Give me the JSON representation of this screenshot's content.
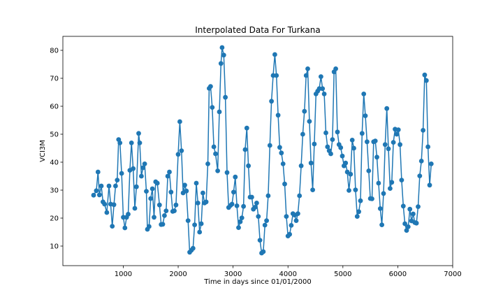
{
  "chart_data": {
    "type": "line",
    "title": "Interpolated Data For Turkana",
    "xlabel": "Time in days since 01/01/2000",
    "ylabel": "VCI3M",
    "xlim": [
      -100,
      7000
    ],
    "ylim": [
      3,
      85
    ],
    "xticks": [
      1000,
      2000,
      3000,
      4000,
      5000,
      6000,
      7000
    ],
    "yticks": [
      10,
      20,
      30,
      40,
      50,
      60,
      70,
      80
    ],
    "grid": false,
    "legend": "none",
    "series": [
      {
        "color": "#1f77b4",
        "marker": "circle",
        "points": [
          [
            460,
            28.2
          ],
          [
            510,
            29.8
          ],
          [
            540,
            36.5
          ],
          [
            565,
            28.3
          ],
          [
            600,
            31.5
          ],
          [
            630,
            25.8
          ],
          [
            660,
            25.0
          ],
          [
            700,
            22.0
          ],
          [
            740,
            31.5
          ],
          [
            770,
            25.0
          ],
          [
            800,
            17.1
          ],
          [
            830,
            24.8
          ],
          [
            860,
            31.5
          ],
          [
            890,
            33.6
          ],
          [
            915,
            48.1
          ],
          [
            940,
            46.9
          ],
          [
            970,
            36.0
          ],
          [
            1000,
            20.3
          ],
          [
            1030,
            16.5
          ],
          [
            1060,
            20.3
          ],
          [
            1090,
            21.4
          ],
          [
            1120,
            37.1
          ],
          [
            1150,
            46.9
          ],
          [
            1180,
            37.7
          ],
          [
            1210,
            23.5
          ],
          [
            1240,
            31.2
          ],
          [
            1280,
            50.3
          ],
          [
            1300,
            46.9
          ],
          [
            1330,
            35.0
          ],
          [
            1360,
            38.0
          ],
          [
            1390,
            39.4
          ],
          [
            1420,
            29.6
          ],
          [
            1440,
            16.0
          ],
          [
            1470,
            17.0
          ],
          [
            1500,
            27.0
          ],
          [
            1530,
            30.5
          ],
          [
            1560,
            20.3
          ],
          [
            1590,
            33.0
          ],
          [
            1620,
            32.5
          ],
          [
            1660,
            24.7
          ],
          [
            1690,
            17.7
          ],
          [
            1720,
            17.8
          ],
          [
            1750,
            20.9
          ],
          [
            1780,
            22.6
          ],
          [
            1810,
            35.0
          ],
          [
            1840,
            36.5
          ],
          [
            1870,
            29.3
          ],
          [
            1900,
            22.4
          ],
          [
            1930,
            22.6
          ],
          [
            1960,
            24.7
          ],
          [
            2000,
            42.8
          ],
          [
            2030,
            54.5
          ],
          [
            2060,
            44.1
          ],
          [
            2090,
            29.0
          ],
          [
            2120,
            31.8
          ],
          [
            2150,
            29.7
          ],
          [
            2180,
            19.1
          ],
          [
            2210,
            7.8
          ],
          [
            2240,
            8.5
          ],
          [
            2270,
            9.2
          ],
          [
            2300,
            17.6
          ],
          [
            2330,
            32.5
          ],
          [
            2360,
            25.4
          ],
          [
            2390,
            15.0
          ],
          [
            2420,
            18.0
          ],
          [
            2450,
            29.0
          ],
          [
            2480,
            25.4
          ],
          [
            2510,
            25.8
          ],
          [
            2540,
            39.4
          ],
          [
            2565,
            66.4
          ],
          [
            2590,
            67.1
          ],
          [
            2620,
            59.6
          ],
          [
            2650,
            45.5
          ],
          [
            2680,
            43.0
          ],
          [
            2720,
            36.9
          ],
          [
            2750,
            58.0
          ],
          [
            2780,
            75.3
          ],
          [
            2800,
            81.0
          ],
          [
            2830,
            78.3
          ],
          [
            2860,
            63.2
          ],
          [
            2890,
            36.3
          ],
          [
            2920,
            23.8
          ],
          [
            2950,
            24.5
          ],
          [
            2980,
            25.0
          ],
          [
            3010,
            29.3
          ],
          [
            3040,
            34.7
          ],
          [
            3070,
            24.4
          ],
          [
            3100,
            16.6
          ],
          [
            3130,
            18.7
          ],
          [
            3160,
            20.1
          ],
          [
            3190,
            24.2
          ],
          [
            3220,
            44.5
          ],
          [
            3250,
            52.2
          ],
          [
            3280,
            38.7
          ],
          [
            3310,
            27.5
          ],
          [
            3340,
            27.5
          ],
          [
            3370,
            23.2
          ],
          [
            3400,
            23.9
          ],
          [
            3430,
            25.4
          ],
          [
            3460,
            20.6
          ],
          [
            3490,
            12.1
          ],
          [
            3520,
            7.5
          ],
          [
            3550,
            8.0
          ],
          [
            3580,
            17.5
          ],
          [
            3610,
            19.1
          ],
          [
            3640,
            28.0
          ],
          [
            3670,
            46.0
          ],
          [
            3700,
            61.8
          ],
          [
            3730,
            71.0
          ],
          [
            3760,
            78.5
          ],
          [
            3790,
            71.0
          ],
          [
            3820,
            56.8
          ],
          [
            3850,
            45.3
          ],
          [
            3880,
            43.3
          ],
          [
            3910,
            39.4
          ],
          [
            3940,
            32.2
          ],
          [
            3970,
            20.6
          ],
          [
            4000,
            13.6
          ],
          [
            4030,
            14.2
          ],
          [
            4060,
            17.4
          ],
          [
            4090,
            21.6
          ],
          [
            4120,
            21.1
          ],
          [
            4150,
            19.1
          ],
          [
            4180,
            21.6
          ],
          [
            4210,
            28.0
          ],
          [
            4240,
            38.7
          ],
          [
            4270,
            50.0
          ],
          [
            4300,
            58.2
          ],
          [
            4330,
            71.0
          ],
          [
            4360,
            73.4
          ],
          [
            4390,
            54.6
          ],
          [
            4420,
            39.7
          ],
          [
            4450,
            30.1
          ],
          [
            4480,
            46.5
          ],
          [
            4510,
            64.4
          ],
          [
            4540,
            65.4
          ],
          [
            4570,
            66.3
          ],
          [
            4600,
            70.6
          ],
          [
            4630,
            66.3
          ],
          [
            4660,
            64.4
          ],
          [
            4690,
            50.5
          ],
          [
            4720,
            45.5
          ],
          [
            4750,
            44.1
          ],
          [
            4780,
            43.0
          ],
          [
            4810,
            48.1
          ],
          [
            4840,
            72.3
          ],
          [
            4870,
            73.4
          ],
          [
            4900,
            50.8
          ],
          [
            4930,
            46.3
          ],
          [
            4960,
            45.2
          ],
          [
            4990,
            42.2
          ],
          [
            5020,
            38.7
          ],
          [
            5050,
            39.7
          ],
          [
            5080,
            36.5
          ],
          [
            5110,
            29.9
          ],
          [
            5140,
            35.7
          ],
          [
            5170,
            47.9
          ],
          [
            5200,
            45.0
          ],
          [
            5230,
            30.1
          ],
          [
            5260,
            20.6
          ],
          [
            5290,
            22.3
          ],
          [
            5320,
            26.2
          ],
          [
            5350,
            50.3
          ],
          [
            5380,
            64.4
          ],
          [
            5410,
            56.6
          ],
          [
            5440,
            47.3
          ],
          [
            5470,
            36.9
          ],
          [
            5500,
            27.0
          ],
          [
            5530,
            26.9
          ],
          [
            5560,
            47.3
          ],
          [
            5590,
            47.6
          ],
          [
            5620,
            41.8
          ],
          [
            5650,
            32.5
          ],
          [
            5680,
            23.4
          ],
          [
            5710,
            17.6
          ],
          [
            5740,
            28.8
          ],
          [
            5770,
            46.3
          ],
          [
            5800,
            59.2
          ],
          [
            5830,
            44.8
          ],
          [
            5860,
            30.6
          ],
          [
            5890,
            32.8
          ],
          [
            5920,
            47.1
          ],
          [
            5950,
            51.8
          ],
          [
            5980,
            50.0
          ],
          [
            6010,
            51.6
          ],
          [
            6040,
            46.3
          ],
          [
            6070,
            33.6
          ],
          [
            6100,
            24.3
          ],
          [
            6130,
            18.0
          ],
          [
            6160,
            15.6
          ],
          [
            6190,
            16.9
          ],
          [
            6220,
            23.2
          ],
          [
            6250,
            19.0
          ],
          [
            6280,
            21.5
          ],
          [
            6310,
            18.4
          ],
          [
            6340,
            18.2
          ],
          [
            6370,
            24.1
          ],
          [
            6400,
            35.1
          ],
          [
            6430,
            40.4
          ],
          [
            6460,
            51.4
          ],
          [
            6490,
            71.2
          ],
          [
            6520,
            69.2
          ],
          [
            6550,
            45.5
          ],
          [
            6580,
            31.8
          ],
          [
            6610,
            39.4
          ]
        ]
      }
    ]
  }
}
